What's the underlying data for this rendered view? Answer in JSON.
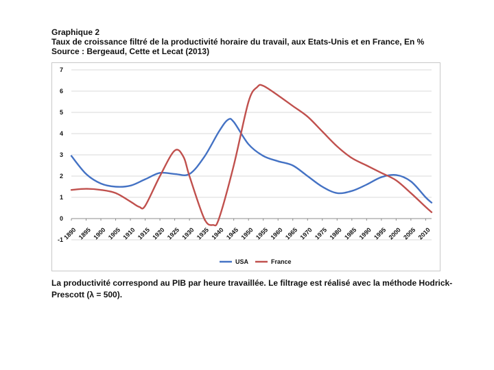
{
  "header": {
    "title": "Graphique 2",
    "subtitle": "Taux de croissance filtré de la productivité horaire du travail, aux Etats-Unis et en France, En %",
    "source": "Source : Bergeaud, Cette et Lecat (2013)"
  },
  "footnote": "La productivité correspond au PIB par heure travaillée. Le filtrage est réalisé avec la méthode Hodrick-Prescott (λ = 500).",
  "chart_data": {
    "type": "line",
    "title": "Taux de croissance filtré de la productivité horaire du travail, aux Etats-Unis et en France, En %",
    "xlabel": "",
    "ylabel": "",
    "ylim": [
      -1,
      7
    ],
    "yticks": [
      -1,
      0,
      1,
      2,
      3,
      4,
      5,
      6,
      7
    ],
    "xlim": [
      1890,
      2012
    ],
    "xticks": [
      1890,
      1895,
      1900,
      1905,
      1910,
      1915,
      1920,
      1925,
      1930,
      1935,
      1940,
      1945,
      1950,
      1955,
      1960,
      1965,
      1970,
      1975,
      1980,
      1985,
      1990,
      1995,
      2000,
      2005,
      2010
    ],
    "grid": true,
    "legend_position": "bottom-center",
    "colors": {
      "USA": "#4472c4",
      "France": "#c0504d"
    },
    "series": [
      {
        "name": "USA",
        "x": [
          1890,
          1895,
          1900,
          1905,
          1910,
          1915,
          1920,
          1925,
          1930,
          1935,
          1940,
          1943,
          1945,
          1950,
          1955,
          1960,
          1965,
          1970,
          1975,
          1980,
          1985,
          1990,
          1995,
          2000,
          2005,
          2010,
          2012
        ],
        "values": [
          2.95,
          2.1,
          1.65,
          1.5,
          1.55,
          1.85,
          2.15,
          2.1,
          2.1,
          2.9,
          4.1,
          4.65,
          4.55,
          3.5,
          2.95,
          2.7,
          2.5,
          2.0,
          1.5,
          1.2,
          1.3,
          1.6,
          1.95,
          2.05,
          1.75,
          1.0,
          0.75
        ]
      },
      {
        "name": "France",
        "x": [
          1890,
          1895,
          1900,
          1905,
          1910,
          1913,
          1915,
          1920,
          1925,
          1928,
          1930,
          1935,
          1938,
          1940,
          1945,
          1950,
          1953,
          1955,
          1960,
          1965,
          1970,
          1975,
          1980,
          1985,
          1990,
          1995,
          2000,
          2005,
          2010,
          2012
        ],
        "values": [
          1.35,
          1.4,
          1.35,
          1.2,
          0.8,
          0.55,
          0.6,
          2.0,
          3.2,
          2.9,
          2.0,
          0.0,
          -0.3,
          0.0,
          2.5,
          5.5,
          6.2,
          6.25,
          5.8,
          5.3,
          4.8,
          4.1,
          3.4,
          2.85,
          2.5,
          2.15,
          1.8,
          1.2,
          0.55,
          0.3
        ]
      }
    ]
  }
}
